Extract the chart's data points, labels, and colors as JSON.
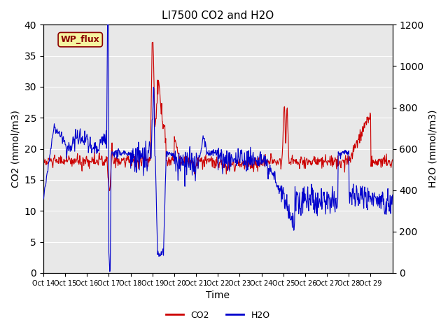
{
  "title": "LI7500 CO2 and H2O",
  "xlabel": "Time",
  "ylabel_left": "CO2 (mmol/m3)",
  "ylabel_right": "H2O (mmol/m3)",
  "annotation": "WP_flux",
  "xlim": [
    0,
    16
  ],
  "ylim_left": [
    0,
    40
  ],
  "ylim_right": [
    0,
    1200
  ],
  "xtick_labels": [
    "Oct 14",
    "Oct 15",
    "Oct 16",
    "Oct 17",
    "Oct 18",
    "Oct 19",
    "Oct 20",
    "Oct 21",
    "Oct 22",
    "Oct 23",
    "Oct 24",
    "Oct 25",
    "Oct 26",
    "Oct 27",
    "Oct 28",
    "Oct 29"
  ],
  "bg_color": "#e8e8e8",
  "line_color_co2": "#cc0000",
  "line_color_h2o": "#0000cc",
  "legend_co2": "CO2",
  "legend_h2o": "H2O"
}
